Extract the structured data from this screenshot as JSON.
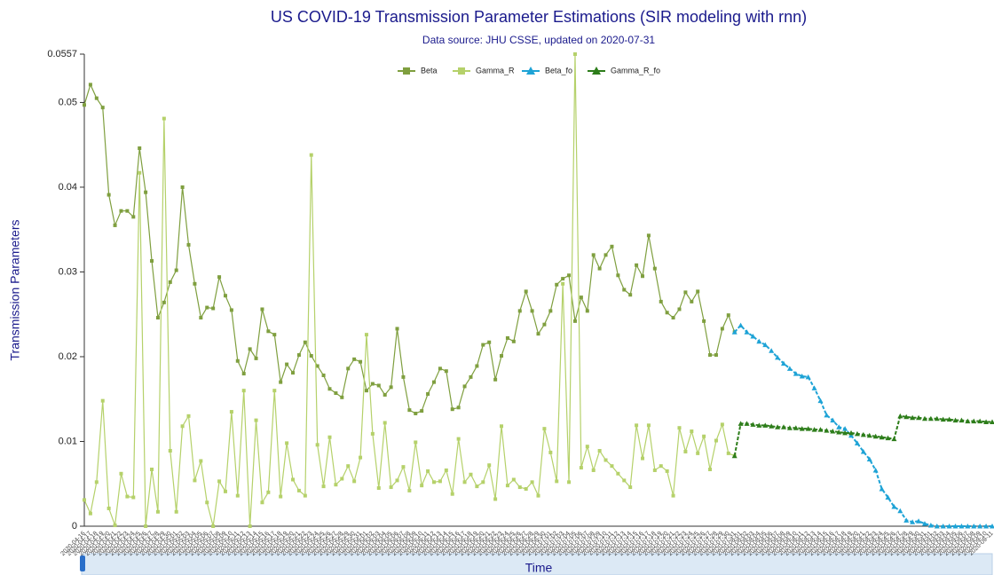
{
  "chart_data": {
    "type": "line",
    "title": "US COVID-19 Transmission Parameter Estimations (SIR modeling with rnn)",
    "subtitle": "Data source: JHU CSSE, updated on 2020-07-31",
    "xlabel": "Time",
    "ylabel": "Transmission Parameters",
    "ylim": [
      0,
      0.0557
    ],
    "yticks": [
      0,
      0.01,
      0.02,
      0.03,
      0.04,
      0.05,
      0.0557
    ],
    "legend": "top",
    "categories": [
      "2020-04-16",
      "2020-04-17",
      "2020-04-18",
      "2020-04-19",
      "2020-04-20",
      "2020-04-21",
      "2020-04-22",
      "2020-04-23",
      "2020-04-24",
      "2020-04-25",
      "2020-04-26",
      "2020-04-27",
      "2020-04-28",
      "2020-04-29",
      "2020-04-30",
      "2020-05-01",
      "2020-05-02",
      "2020-05-03",
      "2020-05-04",
      "2020-05-05",
      "2020-05-06",
      "2020-05-07",
      "2020-05-08",
      "2020-05-09",
      "2020-05-10",
      "2020-05-11",
      "2020-05-12",
      "2020-05-13",
      "2020-05-14",
      "2020-05-15",
      "2020-05-16",
      "2020-05-17",
      "2020-05-18",
      "2020-05-19",
      "2020-05-20",
      "2020-05-21",
      "2020-05-22",
      "2020-05-23",
      "2020-05-24",
      "2020-05-25",
      "2020-05-26",
      "2020-05-27",
      "2020-05-28",
      "2020-05-29",
      "2020-05-30",
      "2020-05-31",
      "2020-06-01",
      "2020-06-02",
      "2020-06-03",
      "2020-06-04",
      "2020-06-05",
      "2020-06-06",
      "2020-06-07",
      "2020-06-08",
      "2020-06-09",
      "2020-06-10",
      "2020-06-11",
      "2020-06-12",
      "2020-06-13",
      "2020-06-14",
      "2020-06-15",
      "2020-06-16",
      "2020-06-17",
      "2020-06-18",
      "2020-06-19",
      "2020-06-20",
      "2020-06-21",
      "2020-06-22",
      "2020-06-23",
      "2020-06-24",
      "2020-06-25",
      "2020-06-26",
      "2020-06-27",
      "2020-06-28",
      "2020-06-29",
      "2020-06-30",
      "2020-07-01",
      "2020-07-02",
      "2020-07-03",
      "2020-07-04",
      "2020-07-05",
      "2020-07-06",
      "2020-07-07",
      "2020-07-08",
      "2020-07-09",
      "2020-07-10",
      "2020-07-11",
      "2020-07-12",
      "2020-07-13",
      "2020-07-14",
      "2020-07-15",
      "2020-07-16",
      "2020-07-17",
      "2020-07-18",
      "2020-07-19",
      "2020-07-20",
      "2020-07-21",
      "2020-07-22",
      "2020-07-23",
      "2020-07-24",
      "2020-07-25",
      "2020-07-26",
      "2020-07-27",
      "2020-07-28",
      "2020-07-29",
      "2020-07-30",
      "2020-07-31",
      "2020-08-01",
      "2020-08-02",
      "2020-08-03",
      "2020-08-04",
      "2020-08-05",
      "2020-08-06",
      "2020-08-07",
      "2020-08-08",
      "2020-08-09",
      "2020-08-10",
      "2020-08-11",
      "2020-08-12",
      "2020-08-13",
      "2020-08-14",
      "2020-08-15",
      "2020-08-16",
      "2020-08-17",
      "2020-08-18",
      "2020-08-19",
      "2020-08-20",
      "2020-08-21",
      "2020-08-22",
      "2020-08-23",
      "2020-08-24",
      "2020-08-25",
      "2020-08-26",
      "2020-08-27",
      "2020-08-28",
      "2020-08-29",
      "2020-08-30",
      "2020-08-31",
      "2020-09-01",
      "2020-09-02",
      "2020-09-03",
      "2020-09-04",
      "2020-09-05",
      "2020-09-06",
      "2020-09-07",
      "2020-09-08",
      "2020-09-09",
      "2020-09-10",
      "2020-09-11"
    ],
    "series": [
      {
        "name": "Beta",
        "color": "#7f9f3f",
        "marker": "square",
        "line_style": "solid",
        "values": [
          0.0497,
          0.0521,
          0.0505,
          0.0494,
          0.0391,
          0.0355,
          0.0372,
          0.0372,
          0.0365,
          0.0446,
          0.0394,
          0.0313,
          0.0246,
          0.0264,
          0.0288,
          0.0302,
          0.04,
          0.0332,
          0.0286,
          0.0246,
          0.0258,
          0.0257,
          0.0294,
          0.0272,
          0.0255,
          0.0195,
          0.018,
          0.0209,
          0.0198,
          0.0256,
          0.023,
          0.0226,
          0.017,
          0.0191,
          0.0181,
          0.0202,
          0.0217,
          0.0201,
          0.0189,
          0.0178,
          0.0162,
          0.0157,
          0.0152,
          0.0186,
          0.0197,
          0.0194,
          0.016,
          0.0168,
          0.0166,
          0.0155,
          0.0164,
          0.0233,
          0.0176,
          0.0137,
          0.0133,
          0.0136,
          0.0156,
          0.017,
          0.0186,
          0.0183,
          0.0138,
          0.014,
          0.0165,
          0.0176,
          0.0189,
          0.0214,
          0.0217,
          0.0173,
          0.0201,
          0.0222,
          0.0218,
          0.0254,
          0.0277,
          0.0254,
          0.0227,
          0.0238,
          0.0254,
          0.0285,
          0.0292,
          0.0296,
          0.0242,
          0.027,
          0.0254,
          0.032,
          0.0304,
          0.032,
          0.033,
          0.0296,
          0.0279,
          0.0273,
          0.0308,
          0.0295,
          0.0343,
          0.0304,
          0.0265,
          0.0252,
          0.0246,
          0.0256,
          0.0276,
          0.0265,
          0.0277,
          0.0242,
          0.0202,
          0.0202,
          0.0233,
          0.0249,
          0.0229,
          null,
          null,
          null,
          null,
          null,
          null,
          null,
          null,
          null,
          null,
          null,
          null,
          null,
          null,
          null,
          null,
          null,
          null,
          null,
          null,
          null,
          null,
          null,
          null,
          null,
          null,
          null,
          null,
          null,
          null,
          null,
          null,
          null,
          null,
          null,
          null,
          null,
          null,
          null,
          null,
          null,
          null
        ]
      },
      {
        "name": "Gamma_R",
        "color": "#b5d16a",
        "marker": "square",
        "line_style": "solid",
        "values": [
          0.0031,
          0.0015,
          0.0052,
          0.0148,
          0.0021,
          0.0001,
          0.0062,
          0.0035,
          0.0034,
          0.0417,
          0,
          0.0067,
          0.0017,
          0.0481,
          0.0089,
          0.0017,
          0.0118,
          0.013,
          0.0054,
          0.0077,
          0.0028,
          0,
          0.0053,
          0.0041,
          0.0135,
          0.0036,
          0.016,
          0,
          0.0125,
          0.0028,
          0.004,
          0.016,
          0.0035,
          0.0098,
          0.0055,
          0.0042,
          0.0036,
          0.0438,
          0.0096,
          0.0047,
          0.0105,
          0.0049,
          0.0056,
          0.0071,
          0.0053,
          0.0081,
          0.0226,
          0.0109,
          0.0045,
          0.0122,
          0.0046,
          0.0054,
          0.007,
          0.0042,
          0.0099,
          0.0048,
          0.0065,
          0.0052,
          0.0053,
          0.0066,
          0.0038,
          0.0103,
          0.0052,
          0.0061,
          0.0047,
          0.0052,
          0.0072,
          0.0032,
          0.0118,
          0.0048,
          0.0055,
          0.0046,
          0.0044,
          0.0052,
          0.0036,
          0.0115,
          0.0087,
          0.0053,
          0.0286,
          0.0052,
          0.0557,
          0.0069,
          0.0094,
          0.0066,
          0.0089,
          0.0078,
          0.0071,
          0.0062,
          0.0054,
          0.0046,
          0.0119,
          0.008,
          0.0119,
          0.0066,
          0.0071,
          0.0065,
          0.0036,
          0.0116,
          0.0088,
          0.0112,
          0.0086,
          0.0106,
          0.0067,
          0.0101,
          0.012,
          0.0086,
          0.0083,
          null,
          null,
          null,
          null,
          null,
          null,
          null,
          null,
          null,
          null,
          null,
          null,
          null,
          null,
          null,
          null,
          null,
          null,
          null,
          null,
          null,
          null,
          null,
          null,
          null,
          null,
          null,
          null,
          null,
          null,
          null,
          null,
          null,
          null,
          null,
          null,
          null,
          null,
          null,
          null,
          null,
          null
        ]
      },
      {
        "name": "Beta_fo",
        "color": "#1ea3d6",
        "marker": "triangle",
        "line_style": "dashed",
        "values": [
          null,
          null,
          null,
          null,
          null,
          null,
          null,
          null,
          null,
          null,
          null,
          null,
          null,
          null,
          null,
          null,
          null,
          null,
          null,
          null,
          null,
          null,
          null,
          null,
          null,
          null,
          null,
          null,
          null,
          null,
          null,
          null,
          null,
          null,
          null,
          null,
          null,
          null,
          null,
          null,
          null,
          null,
          null,
          null,
          null,
          null,
          null,
          null,
          null,
          null,
          null,
          null,
          null,
          null,
          null,
          null,
          null,
          null,
          null,
          null,
          null,
          null,
          null,
          null,
          null,
          null,
          null,
          null,
          null,
          null,
          null,
          null,
          null,
          null,
          null,
          null,
          null,
          null,
          null,
          null,
          null,
          null,
          null,
          null,
          null,
          null,
          null,
          null,
          null,
          null,
          null,
          null,
          null,
          null,
          null,
          null,
          null,
          null,
          null,
          null,
          null,
          null,
          null,
          null,
          null,
          null,
          0.0229,
          0.0237,
          0.0229,
          0.0224,
          0.0218,
          0.0214,
          0.0207,
          0.0199,
          0.0192,
          0.0186,
          0.018,
          0.0177,
          0.0176,
          0.0163,
          0.0148,
          0.0131,
          0.0125,
          0.0117,
          0.0115,
          0.0107,
          0.0098,
          0.0088,
          0.0079,
          0.0066,
          0.0044,
          0.0034,
          0.0023,
          0.0018,
          0.0007,
          0.0005,
          0.0006,
          0.0003,
          0.0001,
          0,
          0,
          0,
          0,
          0,
          0,
          0,
          0,
          0,
          0
        ]
      },
      {
        "name": "Gamma_R_fo",
        "color": "#2d7d1a",
        "marker": "triangle",
        "line_style": "dashed",
        "values": [
          null,
          null,
          null,
          null,
          null,
          null,
          null,
          null,
          null,
          null,
          null,
          null,
          null,
          null,
          null,
          null,
          null,
          null,
          null,
          null,
          null,
          null,
          null,
          null,
          null,
          null,
          null,
          null,
          null,
          null,
          null,
          null,
          null,
          null,
          null,
          null,
          null,
          null,
          null,
          null,
          null,
          null,
          null,
          null,
          null,
          null,
          null,
          null,
          null,
          null,
          null,
          null,
          null,
          null,
          null,
          null,
          null,
          null,
          null,
          null,
          null,
          null,
          null,
          null,
          null,
          null,
          null,
          null,
          null,
          null,
          null,
          null,
          null,
          null,
          null,
          null,
          null,
          null,
          null,
          null,
          null,
          null,
          null,
          null,
          null,
          null,
          null,
          null,
          null,
          null,
          null,
          null,
          null,
          null,
          null,
          null,
          null,
          null,
          null,
          null,
          null,
          null,
          null,
          null,
          null,
          null,
          0.0083,
          0.0121,
          0.0121,
          0.012,
          0.0119,
          0.0119,
          0.0118,
          0.0117,
          0.0117,
          0.0116,
          0.0116,
          0.0115,
          0.0115,
          0.0114,
          0.0114,
          0.0113,
          0.0112,
          0.0111,
          0.011,
          0.011,
          0.0109,
          0.0108,
          0.0107,
          0.0106,
          0.0105,
          0.0104,
          0.0103,
          0.013,
          0.0129,
          0.0128,
          0.0128,
          0.0127,
          0.0127,
          0.0127,
          0.0126,
          0.0126,
          0.0125,
          0.0125,
          0.0124,
          0.0124,
          0.0124,
          0.0123,
          0.0123
        ]
      }
    ]
  }
}
